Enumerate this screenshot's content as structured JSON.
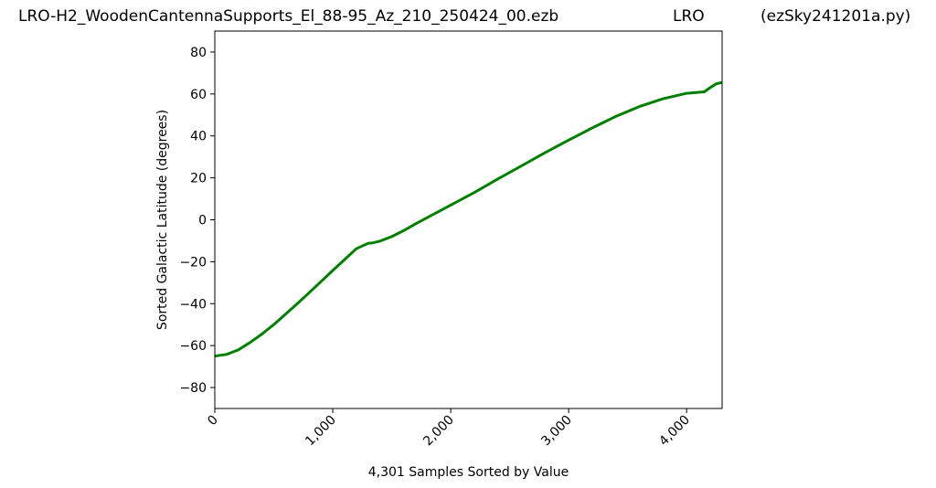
{
  "titles": {
    "left": "LRO-H2_WoodenCantennaSupports_El_88-95_Az_210_250424_00.ezb",
    "center": "LRO",
    "right": "(ezSky241201a.py)"
  },
  "colors": {
    "line": "#008000",
    "axes": "#000000",
    "background": "#ffffff"
  },
  "chart_data": {
    "type": "line",
    "xlabel": "4,301 Samples Sorted by Value",
    "ylabel": "Sorted Galactic Latitude (degrees)",
    "xlim": [
      0,
      4301
    ],
    "ylim": [
      -90,
      90
    ],
    "grid": false,
    "x_ticks": [
      0,
      1000,
      2000,
      3000,
      4000
    ],
    "x_tick_labels": [
      "0",
      "1,000",
      "2,000",
      "3,000",
      "4,000"
    ],
    "y_ticks": [
      -80,
      -60,
      -40,
      -20,
      0,
      20,
      40,
      60,
      80
    ],
    "y_tick_labels": [
      "−80",
      "−60",
      "−40",
      "−20",
      "0",
      "20",
      "40",
      "60",
      "80"
    ],
    "series": [
      {
        "color": "#008000",
        "x": [
          0,
          100,
          200,
          300,
          400,
          500,
          600,
          700,
          800,
          900,
          1000,
          1100,
          1200,
          1300,
          1340,
          1400,
          1500,
          1600,
          1700,
          1800,
          1900,
          2000,
          2200,
          2400,
          2600,
          2800,
          3000,
          3200,
          3400,
          3600,
          3800,
          4000,
          4100,
          4150,
          4200,
          4250,
          4301
        ],
        "y": [
          -65,
          -64.2,
          -62,
          -58.5,
          -54.5,
          -50,
          -45,
          -40,
          -34.8,
          -29.5,
          -24.2,
          -19,
          -13.8,
          -11.2,
          -11,
          -10.2,
          -8,
          -5.2,
          -2,
          1,
          4,
          7,
          13,
          19.5,
          25.7,
          32,
          38,
          43.8,
          49.3,
          54,
          57.7,
          60.3,
          60.8,
          61,
          63,
          64.8,
          65.5
        ]
      }
    ]
  }
}
